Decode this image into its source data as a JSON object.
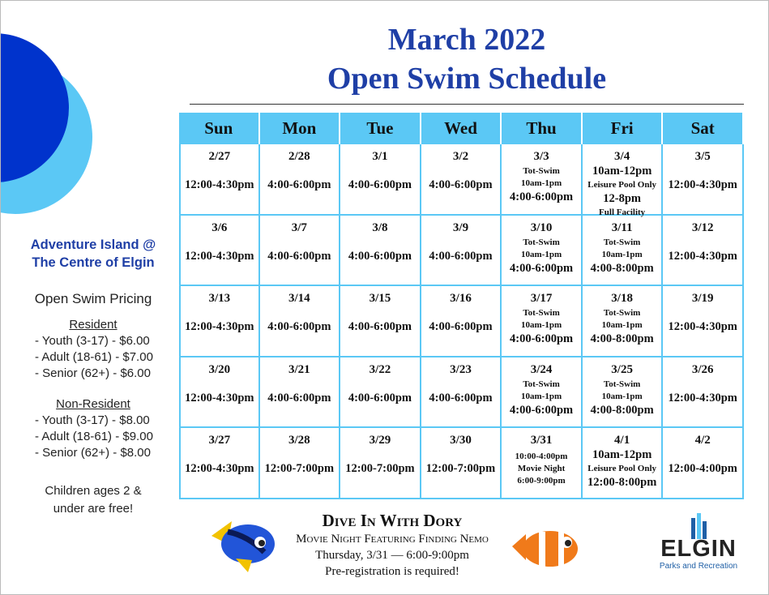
{
  "title": [
    "March 2022",
    "Open Swim Schedule"
  ],
  "sidebar": {
    "venue": [
      "Adventure Island @",
      "The Centre of Elgin"
    ],
    "pricing_title": "Open Swim Pricing",
    "groups": [
      {
        "heading": "Resident",
        "items": [
          "- Youth (3-17) -  $6.00",
          "- Adult (18-61) - $7.00",
          "- Senior (62+) -  $6.00"
        ]
      },
      {
        "heading": "Non-Resident",
        "items": [
          "- Youth (3-17) -  $8.00",
          "- Adult (18-61) - $9.00",
          "- Senior (62+) -  $8.00"
        ]
      }
    ],
    "note": [
      "Children ages 2 &",
      "under are free!"
    ]
  },
  "calendar": {
    "days": [
      "Sun",
      "Mon",
      "Tue",
      "Wed",
      "Thu",
      "Fri",
      "Sat"
    ],
    "weeks": [
      [
        {
          "date": "2/27",
          "lines": [
            "12:00-4:30pm"
          ]
        },
        {
          "date": "2/28",
          "lines": [
            "4:00-6:00pm"
          ]
        },
        {
          "date": "3/1",
          "lines": [
            "4:00-6:00pm"
          ]
        },
        {
          "date": "3/2",
          "lines": [
            "4:00-6:00pm"
          ]
        },
        {
          "date": "3/3",
          "lines": [
            {
              "text": "Tot-Swim",
              "small": true
            },
            {
              "text": "10am-1pm",
              "small": true
            },
            "4:00-6:00pm"
          ]
        },
        {
          "date": "3/4",
          "lines": [
            "10am-12pm",
            {
              "text": "Leisure Pool Only",
              "small": true
            },
            "12-8pm",
            {
              "text": "Full Facility",
              "small": true
            }
          ]
        },
        {
          "date": "3/5",
          "lines": [
            "12:00-4:30pm"
          ]
        }
      ],
      [
        {
          "date": "3/6",
          "lines": [
            "12:00-4:30pm"
          ]
        },
        {
          "date": "3/7",
          "lines": [
            "4:00-6:00pm"
          ]
        },
        {
          "date": "3/8",
          "lines": [
            "4:00-6:00pm"
          ]
        },
        {
          "date": "3/9",
          "lines": [
            "4:00-6:00pm"
          ]
        },
        {
          "date": "3/10",
          "lines": [
            {
              "text": "Tot-Swim",
              "small": true
            },
            {
              "text": "10am-1pm",
              "small": true
            },
            "4:00-6:00pm"
          ]
        },
        {
          "date": "3/11",
          "lines": [
            {
              "text": "Tot-Swim",
              "small": true
            },
            {
              "text": "10am-1pm",
              "small": true
            },
            "4:00-8:00pm"
          ]
        },
        {
          "date": "3/12",
          "lines": [
            "12:00-4:30pm"
          ]
        }
      ],
      [
        {
          "date": "3/13",
          "lines": [
            "12:00-4:30pm"
          ]
        },
        {
          "date": "3/14",
          "lines": [
            "4:00-6:00pm"
          ]
        },
        {
          "date": "3/15",
          "lines": [
            "4:00-6:00pm"
          ]
        },
        {
          "date": "3/16",
          "lines": [
            "4:00-6:00pm"
          ]
        },
        {
          "date": "3/17",
          "lines": [
            {
              "text": "Tot-Swim",
              "small": true
            },
            {
              "text": "10am-1pm",
              "small": true
            },
            "4:00-6:00pm"
          ]
        },
        {
          "date": "3/18",
          "lines": [
            {
              "text": "Tot-Swim",
              "small": true
            },
            {
              "text": "10am-1pm",
              "small": true
            },
            "4:00-8:00pm"
          ]
        },
        {
          "date": "3/19",
          "lines": [
            "12:00-4:30pm"
          ]
        }
      ],
      [
        {
          "date": "3/20",
          "lines": [
            "12:00-4:30pm"
          ]
        },
        {
          "date": "3/21",
          "lines": [
            "4:00-6:00pm"
          ]
        },
        {
          "date": "3/22",
          "lines": [
            "4:00-6:00pm"
          ]
        },
        {
          "date": "3/23",
          "lines": [
            "4:00-6:00pm"
          ]
        },
        {
          "date": "3/24",
          "lines": [
            {
              "text": "Tot-Swim",
              "small": true
            },
            {
              "text": "10am-1pm",
              "small": true
            },
            "4:00-6:00pm"
          ]
        },
        {
          "date": "3/25",
          "lines": [
            {
              "text": "Tot-Swim",
              "small": true
            },
            {
              "text": "10am-1pm",
              "small": true
            },
            "4:00-8:00pm"
          ]
        },
        {
          "date": "3/26",
          "lines": [
            "12:00-4:30pm"
          ]
        }
      ],
      [
        {
          "date": "3/27",
          "lines": [
            "12:00-4:30pm"
          ]
        },
        {
          "date": "3/28",
          "lines": [
            "12:00-7:00pm"
          ]
        },
        {
          "date": "3/29",
          "lines": [
            "12:00-7:00pm"
          ]
        },
        {
          "date": "3/30",
          "lines": [
            "12:00-7:00pm"
          ]
        },
        {
          "date": "3/31",
          "lines": [
            {
              "text": "10:00-4:00pm",
              "small": true
            },
            {
              "text": "Movie Night",
              "small": true
            },
            {
              "text": "6:00-9:00pm",
              "small": true
            }
          ]
        },
        {
          "date": "4/1",
          "lines": [
            "10am-12pm",
            {
              "text": "Leisure Pool Only",
              "small": true
            },
            "12:00-8:00pm"
          ]
        },
        {
          "date": "4/2",
          "lines": [
            "12:00-4:00pm"
          ]
        }
      ]
    ]
  },
  "footer": {
    "event_title": "Dive In With Dory",
    "lines": [
      "Movie Night Featuring Finding Nemo",
      "Thursday, 3/31 — 6:00-9:00pm",
      "Pre-registration is required!"
    ]
  },
  "logo": {
    "name": "ELGIN",
    "tagline": "Parks and Recreation"
  }
}
